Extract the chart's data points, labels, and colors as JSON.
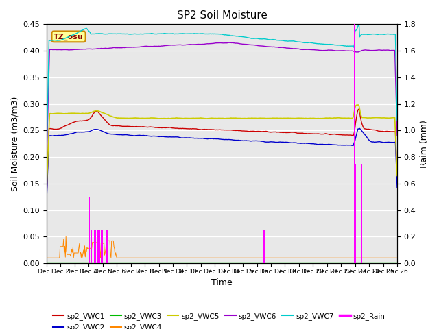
{
  "title": "SP2 Soil Moisture",
  "xlabel": "Time",
  "ylabel_left": "Soil Moisture (m3/m3)",
  "ylabel_right": "Raim (mm)",
  "ylim_left": [
    0.0,
    0.45
  ],
  "ylim_right": [
    0.0,
    1.8
  ],
  "colors": {
    "sp2_VWC1": "#cc0000",
    "sp2_VWC2": "#0000cc",
    "sp2_VWC3": "#00bb00",
    "sp2_VWC4": "#ff8800",
    "sp2_VWC5": "#cccc00",
    "sp2_VWC6": "#9900cc",
    "sp2_VWC7": "#00cccc",
    "sp2_Rain": "#ff00ff"
  },
  "background_color": "#e8e8e8",
  "annotation_text": "TZ_osu",
  "annotation_bg": "#ffff99",
  "annotation_border": "#cc8800",
  "grid_color": "#ffffff",
  "n_days": 25,
  "hours_per_day": 24,
  "rain_times": [
    1.1,
    1.9,
    3.05,
    3.2,
    3.3,
    3.4,
    3.5,
    3.6,
    3.65,
    3.7,
    3.75,
    3.8,
    3.9,
    4.0,
    4.1,
    4.3,
    15.5,
    15.55,
    21.95,
    22.05,
    22.15,
    22.5
  ],
  "rain_vals": [
    0.75,
    0.75,
    0.5,
    0.25,
    0.25,
    0.25,
    0.25,
    0.25,
    0.25,
    0.25,
    0.25,
    0.25,
    0.25,
    0.25,
    0.25,
    0.25,
    0.25,
    0.25,
    1.8,
    0.75,
    0.25,
    0.75
  ],
  "yticks_left": [
    0.0,
    0.05,
    0.1,
    0.15,
    0.2,
    0.25,
    0.3,
    0.35,
    0.4,
    0.45
  ],
  "yticks_right": [
    0.0,
    0.2,
    0.4,
    0.6,
    0.8,
    1.0,
    1.2,
    1.4,
    1.6,
    1.8
  ]
}
